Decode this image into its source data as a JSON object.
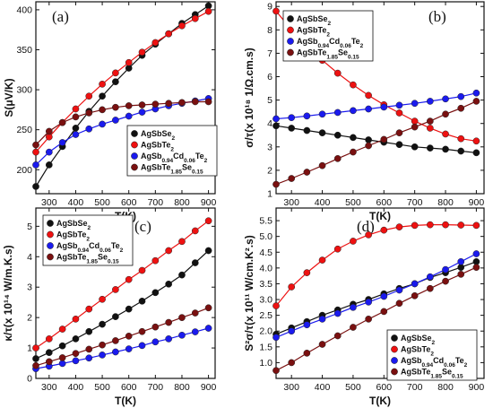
{
  "figure": {
    "series_names": [
      "AgSbSe2",
      "AgSbTe2",
      "AgSb0.94Cd0.06Te2",
      "AgSbTe1.85Se0.15"
    ]
  },
  "chart_data": [
    {
      "type": "line",
      "panel_label": "(a)",
      "xlabel": "T(K)",
      "ylabel": "S(μV/K)",
      "xlim": [
        250,
        925
      ],
      "ylim": [
        170,
        410
      ],
      "xticks": [
        300,
        400,
        500,
        600,
        700,
        800,
        900
      ],
      "yticks": [
        200,
        250,
        300,
        350,
        400
      ],
      "legend_position": "bottom-right",
      "x": [
        250,
        300,
        350,
        400,
        450,
        500,
        550,
        600,
        650,
        700,
        750,
        800,
        850,
        900
      ],
      "series": [
        {
          "name": "AgSbSe2",
          "color": "#111111",
          "values": [
            179,
            206,
            229,
            252,
            273,
            292,
            310,
            327,
            343,
            357,
            370,
            383,
            394,
            405
          ]
        },
        {
          "name": "AgSbTe2",
          "color": "#ee1111",
          "values": [
            222,
            241,
            259,
            276,
            292,
            307,
            321,
            334,
            347,
            359,
            370,
            380,
            389,
            398
          ]
        },
        {
          "name": "AgSb0.94Cd0.06Te2",
          "color": "#1a1aee",
          "values": [
            206,
            222,
            234,
            244,
            251,
            257,
            262,
            267,
            272,
            276,
            280,
            283,
            286,
            289
          ]
        },
        {
          "name": "AgSbTe1.85Se0.15",
          "color": "#7a1010",
          "values": [
            231,
            248,
            259,
            266,
            271,
            275,
            278,
            280,
            281,
            282,
            283,
            284,
            285,
            285
          ]
        }
      ]
    },
    {
      "type": "line",
      "panel_label": "(b)",
      "xlabel": "T(K)",
      "ylabel": "σ/τ(x 10¹⁸ 1/Ω.cm.s)",
      "xlim": [
        250,
        925
      ],
      "ylim": [
        1.0,
        9.2
      ],
      "xticks": [
        300,
        400,
        500,
        600,
        700,
        800,
        900
      ],
      "yticks": [
        1.0,
        2.0,
        3.0,
        4.0,
        5.0,
        6.0,
        7.0,
        8.0,
        9.0
      ],
      "legend_position": "top-right",
      "x": [
        250,
        300,
        350,
        400,
        450,
        500,
        550,
        600,
        650,
        700,
        750,
        800,
        850,
        900
      ],
      "series": [
        {
          "name": "AgSbSe2",
          "color": "#111111",
          "values": [
            3.9,
            3.8,
            3.7,
            3.6,
            3.5,
            3.4,
            3.3,
            3.2,
            3.1,
            3.0,
            2.95,
            2.9,
            2.82,
            2.75
          ]
        },
        {
          "name": "AgSbTe2",
          "color": "#ee1111",
          "values": [
            8.8,
            8.0,
            7.3,
            6.7,
            6.15,
            5.65,
            5.2,
            4.8,
            4.45,
            4.1,
            3.8,
            3.55,
            3.35,
            3.25
          ]
        },
        {
          "name": "AgSb0.94Cd0.06Te2",
          "color": "#1a1aee",
          "values": [
            4.2,
            4.25,
            4.32,
            4.4,
            4.47,
            4.55,
            4.62,
            4.7,
            4.78,
            4.86,
            4.95,
            5.05,
            5.15,
            5.3
          ]
        },
        {
          "name": "AgSbTe1.85Se0.15",
          "color": "#7a1010",
          "values": [
            1.4,
            1.65,
            1.92,
            2.2,
            2.5,
            2.78,
            3.05,
            3.32,
            3.6,
            3.85,
            4.1,
            4.4,
            4.65,
            4.95
          ]
        }
      ]
    },
    {
      "type": "line",
      "panel_label": "(c)",
      "xlabel": "T(K)",
      "ylabel": "κ/τ(x 10¹⁴ W/m.K.s)",
      "xlim": [
        250,
        925
      ],
      "ylim": [
        0,
        5.6
      ],
      "xticks": [
        300,
        400,
        500,
        600,
        700,
        800,
        900
      ],
      "yticks": [
        0,
        1,
        2,
        3,
        4,
        5
      ],
      "legend_position": "top-left",
      "x": [
        250,
        300,
        350,
        400,
        450,
        500,
        550,
        600,
        650,
        700,
        750,
        800,
        850,
        900
      ],
      "series": [
        {
          "name": "AgSbSe2",
          "color": "#111111",
          "values": [
            0.65,
            0.85,
            1.07,
            1.3,
            1.54,
            1.78,
            2.03,
            2.28,
            2.54,
            2.82,
            3.1,
            3.4,
            3.8,
            4.2
          ]
        },
        {
          "name": "AgSbTe2",
          "color": "#ee1111",
          "values": [
            1.0,
            1.3,
            1.62,
            1.95,
            2.28,
            2.6,
            2.92,
            3.25,
            3.55,
            3.87,
            4.2,
            4.5,
            4.85,
            5.18
          ]
        },
        {
          "name": "AgSb0.94Cd0.06Te2",
          "color": "#1a1aee",
          "values": [
            0.32,
            0.4,
            0.49,
            0.58,
            0.67,
            0.77,
            0.87,
            0.97,
            1.08,
            1.2,
            1.3,
            1.42,
            1.53,
            1.65
          ]
        },
        {
          "name": "AgSbTe1.85Se0.15",
          "color": "#7a1010",
          "values": [
            0.42,
            0.55,
            0.68,
            0.82,
            0.96,
            1.1,
            1.24,
            1.39,
            1.54,
            1.69,
            1.84,
            2.0,
            2.15,
            2.32
          ]
        }
      ]
    },
    {
      "type": "line",
      "panel_label": "(d)",
      "xlabel": "T(K)",
      "ylabel": "S²σ/τ(x 10¹¹ W/cm.K².s)",
      "xlim": [
        250,
        925
      ],
      "ylim": [
        0.5,
        5.9
      ],
      "xticks": [
        300,
        400,
        500,
        600,
        700,
        800,
        900
      ],
      "yticks": [
        1.0,
        1.5,
        2.0,
        2.5,
        3.0,
        3.5,
        4.0,
        4.5,
        5.0,
        5.5
      ],
      "legend_position": "bottom-right",
      "x": [
        250,
        300,
        350,
        400,
        450,
        500,
        550,
        600,
        650,
        700,
        750,
        800,
        850,
        900
      ],
      "series": [
        {
          "name": "AgSbSe2",
          "color": "#111111",
          "values": [
            1.9,
            2.1,
            2.3,
            2.5,
            2.67,
            2.85,
            3.0,
            3.18,
            3.35,
            3.5,
            3.7,
            3.85,
            4.02,
            4.2
          ]
        },
        {
          "name": "AgSbTe2",
          "color": "#ee1111",
          "values": [
            2.8,
            3.4,
            3.85,
            4.25,
            4.6,
            4.85,
            5.05,
            5.2,
            5.3,
            5.35,
            5.37,
            5.37,
            5.36,
            5.35
          ]
        },
        {
          "name": "AgSb0.94Cd0.06Te2",
          "color": "#1a1aee",
          "values": [
            1.8,
            2.0,
            2.2,
            2.38,
            2.56,
            2.75,
            2.92,
            3.1,
            3.3,
            3.5,
            3.72,
            3.95,
            4.2,
            4.45
          ]
        },
        {
          "name": "AgSbTe1.85Se0.15",
          "color": "#7a1010",
          "values": [
            0.75,
            1.0,
            1.3,
            1.58,
            1.85,
            2.12,
            2.38,
            2.62,
            2.88,
            3.12,
            3.35,
            3.58,
            3.8,
            4.02
          ]
        }
      ]
    }
  ]
}
